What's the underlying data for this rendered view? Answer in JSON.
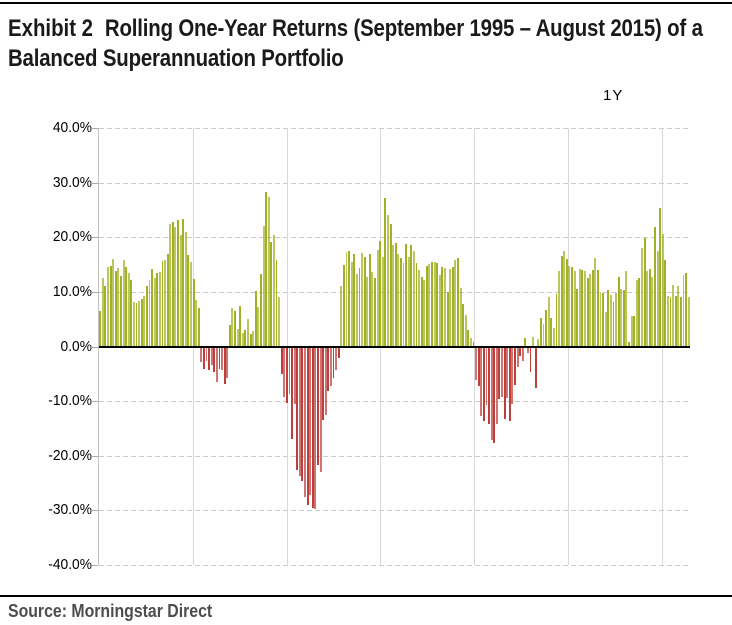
{
  "header": {
    "exhibit_label": "Exhibit 2",
    "title_line1": "Rolling One-Year Returns (September 1995 – August 2015) of a",
    "title_line2": "Balanced Superannuation Portfolio"
  },
  "legend": {
    "series_label": "1Y"
  },
  "y_axis": {
    "tick_labels": [
      "40.0%",
      "30.0%",
      "20.0%",
      "10.0%",
      "0.0%",
      "-10.0%",
      "-20.0%",
      "-30.0%",
      "-40.0%"
    ]
  },
  "footer": {
    "source": "Source: Morningstar Direct"
  },
  "chart_data": {
    "type": "bar",
    "title": "Rolling One-Year Returns (September 1995 – August 2015) of a Balanced Superannuation Portfolio",
    "series_name": "1Y",
    "unit": "percent",
    "ylim": [
      -40,
      40
    ],
    "y_ticks": [
      40,
      30,
      20,
      10,
      0,
      -10,
      -20,
      -30,
      -40
    ],
    "x_axis_note": "monthly rolling one-year return observations, September 1995 - August 2015; no x tick labels shown",
    "grid": "horizontal dashed every 10%, vertical solid every ~3 years",
    "legend_position": "top-right",
    "positive_color": "#a0b124",
    "negative_color": "#be3e3c",
    "values": [
      6.5,
      12.6,
      11.0,
      14.5,
      14.7,
      16.0,
      13.9,
      14.4,
      12.9,
      15.8,
      14.5,
      13.4,
      12.1,
      8.2,
      8.0,
      8.4,
      8.7,
      9.3,
      11.1,
      12.2,
      14.1,
      12.5,
      13.4,
      13.7,
      15.6,
      15.8,
      16.9,
      22.4,
      22.8,
      21.9,
      23.2,
      20.4,
      23.3,
      20.9,
      16.8,
      15.5,
      12.4,
      8.6,
      7.0,
      -2.6,
      -4.0,
      -2.5,
      -4.2,
      -3.2,
      -4.5,
      -6.4,
      -4.0,
      -4.2,
      -6.6,
      -5.5,
      4.0,
      7.0,
      6.5,
      3.2,
      7.5,
      2.5,
      3.0,
      5.0,
      2.2,
      2.8,
      10.2,
      7.3,
      13.3,
      22.0,
      28.2,
      27.4,
      19.1,
      20.4,
      15.8,
      9.0,
      -4.8,
      -9.0,
      -10.2,
      -8.6,
      -16.8,
      -10.3,
      -22.5,
      -23.5,
      -24.5,
      -27.3,
      -28.8,
      -27.0,
      -29.3,
      -29.5,
      -21.5,
      -22.8,
      -13.2,
      -12.4,
      -8.0,
      -7.0,
      -5.5,
      -4.2,
      -2.0,
      11.1,
      14.9,
      17.3,
      17.5,
      15.4,
      16.9,
      13.3,
      14.3,
      17.1,
      16.4,
      12.7,
      16.9,
      13.6,
      12.5,
      17.6,
      19.4,
      16.4,
      27.2,
      24.1,
      22.4,
      18.6,
      19.0,
      17.0,
      16.2,
      15.3,
      18.7,
      16.4,
      18.5,
      17.4,
      15.2,
      14.0,
      12.8,
      12.1,
      14.8,
      15.1,
      15.4,
      15.5,
      15.3,
      13.0,
      14.5,
      14.3,
      10.0,
      14.1,
      14.6,
      15.8,
      16.2,
      10.8,
      7.8,
      5.8,
      3.0,
      1.5,
      0.8,
      -5.9,
      -7.0,
      -12.5,
      -13.5,
      -10.5,
      -14.0,
      -17.0,
      -17.5,
      -14.0,
      -9.5,
      -9.0,
      -13.0,
      -9.3,
      -13.5,
      -10.3,
      -6.8,
      -3.5,
      -1.5,
      -2.5,
      1.5,
      -1.0,
      -4.5,
      1.8,
      -7.5,
      1.3,
      5.3,
      4.2,
      6.6,
      9.0,
      5.3,
      3.3,
      9.7,
      13.8,
      16.6,
      17.5,
      16.0,
      14.8,
      14.5,
      13.8,
      10.5,
      14.2,
      14.0,
      13.8,
      12.5,
      13.2,
      14.0,
      16.2,
      14.0,
      10.0,
      9.8,
      6.3,
      10.3,
      9.5,
      8.1,
      9.8,
      12.8,
      10.5,
      10.4,
      13.9,
      0.8,
      5.5,
      5.6,
      12.2,
      12.5,
      18.0,
      19.8,
      13.8,
      14.2,
      12.8,
      21.9,
      17.4,
      25.4,
      20.6,
      15.8,
      9.2,
      9.0,
      11.2,
      9.3,
      11.0,
      9.0,
      13.0,
      13.4,
      9.0
    ]
  }
}
